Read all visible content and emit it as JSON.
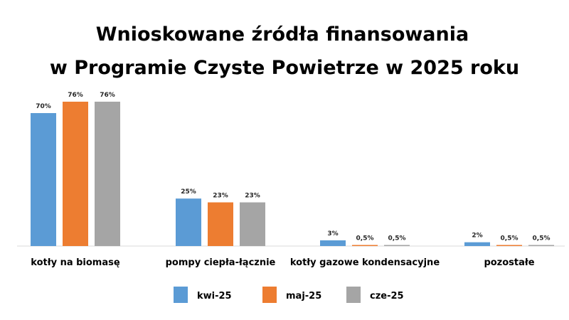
{
  "chart_data": {
    "type": "bar",
    "title": [
      "Wnioskowane źródła finansowania",
      "w Programie Czyste Powietrze w 2025 roku"
    ],
    "categories": [
      "kotły na biomasę",
      "pompy ciepła-łącznie",
      "kotły gazowe kondensacyjne",
      "pozostałe"
    ],
    "series": [
      {
        "name": "kwi-25",
        "color": "#5b9bd5",
        "values": [
          70,
          25,
          3,
          2
        ],
        "labels": [
          "70%",
          "25%",
          "3%",
          "2%"
        ]
      },
      {
        "name": "maj-25",
        "color": "#ed7d31",
        "values": [
          76,
          23,
          0.5,
          0.5
        ],
        "labels": [
          "76%",
          "23%",
          "0,5%",
          "0,5%"
        ]
      },
      {
        "name": "cze-25",
        "color": "#a5a5a5",
        "values": [
          76,
          23,
          0.5,
          0.5
        ],
        "labels": [
          "76%",
          "23%",
          "0,5%",
          "0,5%"
        ]
      }
    ],
    "ylim": [
      0,
      76
    ],
    "grid": false,
    "legend": "bottom"
  }
}
